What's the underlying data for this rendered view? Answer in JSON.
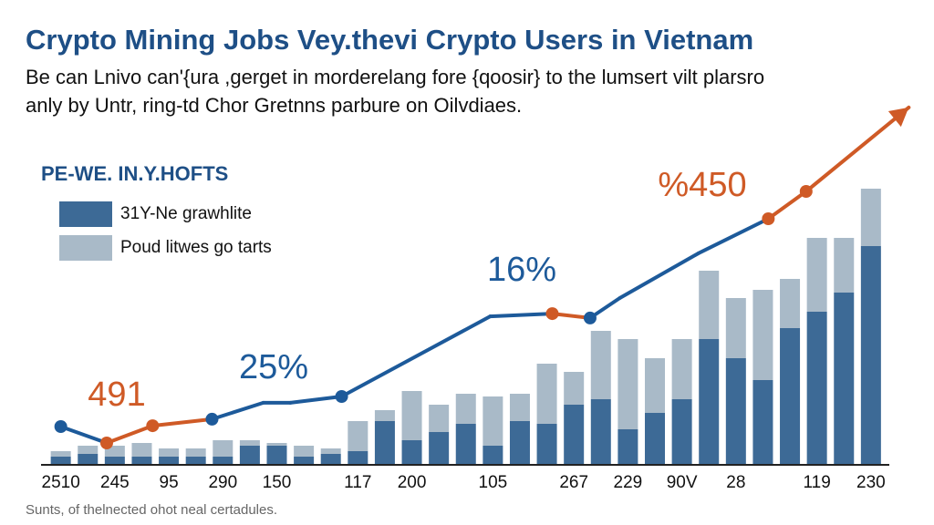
{
  "chart_data": {
    "type": "bar",
    "title": "Crypto Mining Jobs Vey.thevi Crypto Users in Vietnam",
    "subtitle": [
      "Be can Lnivo can'{ura ,gerget in morderelang fore {qoosir} to the lumsert vilt plarsro",
      "anly by Untr, ring-td Chor Gretnns parbure on Oilvdiaes."
    ],
    "legend_title": "PE-WE. IN.Y.HOFTS",
    "footnote": "Sunts, of thelnected ohot neal certadules.",
    "categories": [
      "2510",
      null,
      "245",
      null,
      "95",
      null,
      "290",
      null,
      "150",
      null,
      null,
      "117",
      null,
      "200",
      null,
      null,
      "105",
      null,
      null,
      "267",
      null,
      "229",
      null,
      "90V",
      null,
      "28",
      null,
      null,
      "119",
      null,
      "230"
    ],
    "series": [
      {
        "name": "31Y-Ne grawhlite",
        "color": "#3d6a96",
        "values": [
          3,
          4,
          3,
          3,
          3,
          3,
          3,
          7,
          7,
          3,
          4,
          5,
          16,
          9,
          12,
          15,
          7,
          16,
          15,
          22,
          24,
          13,
          19,
          24,
          46,
          39,
          31,
          50,
          56,
          63,
          80
        ]
      },
      {
        "name": "Poud litwes go tarts",
        "color": "#a9bac8",
        "values": [
          2,
          3,
          4,
          5,
          3,
          3,
          6,
          2,
          1,
          4,
          2,
          11,
          4,
          18,
          10,
          11,
          18,
          10,
          22,
          12,
          25,
          33,
          20,
          22,
          25,
          22,
          33,
          18,
          27,
          20,
          21
        ]
      }
    ],
    "line": {
      "x": [
        0,
        1.7,
        3.4,
        5.6,
        7.5,
        8.5,
        10.4,
        15.9,
        18.2,
        19.6,
        20.7,
        23.6,
        26.2,
        27.6,
        31.4
      ],
      "values": [
        14,
        8,
        14.3,
        16.7,
        22.7,
        22.7,
        25,
        54.3,
        55.3,
        53.7,
        61,
        77.3,
        90,
        100,
        130.7
      ],
      "segment_colors": [
        "#1d5a9a",
        "#cf5a26",
        "#cf5a26",
        "#1d5a9a",
        "#1d5a9a",
        "#1d5a9a",
        "#1d5a9a",
        "#1d5a9a",
        "#cf5a26",
        "#1d5a9a",
        "#1d5a9a",
        "#1d5a9a",
        "#cf5a26",
        "#cf5a26"
      ],
      "markers": [
        true,
        true,
        true,
        true,
        false,
        false,
        true,
        false,
        true,
        true,
        false,
        false,
        true,
        true,
        false
      ]
    },
    "annotations": [
      {
        "text": "491",
        "color": "#cf5a26"
      },
      {
        "text": "25%",
        "color": "#1d5a9a"
      },
      {
        "text": "16%",
        "color": "#1d5a9a"
      },
      {
        "text": "%450",
        "color": "#cf5a26"
      }
    ],
    "xlim": [
      -0.9,
      32.2
    ],
    "ylim": [
      0,
      135
    ]
  }
}
